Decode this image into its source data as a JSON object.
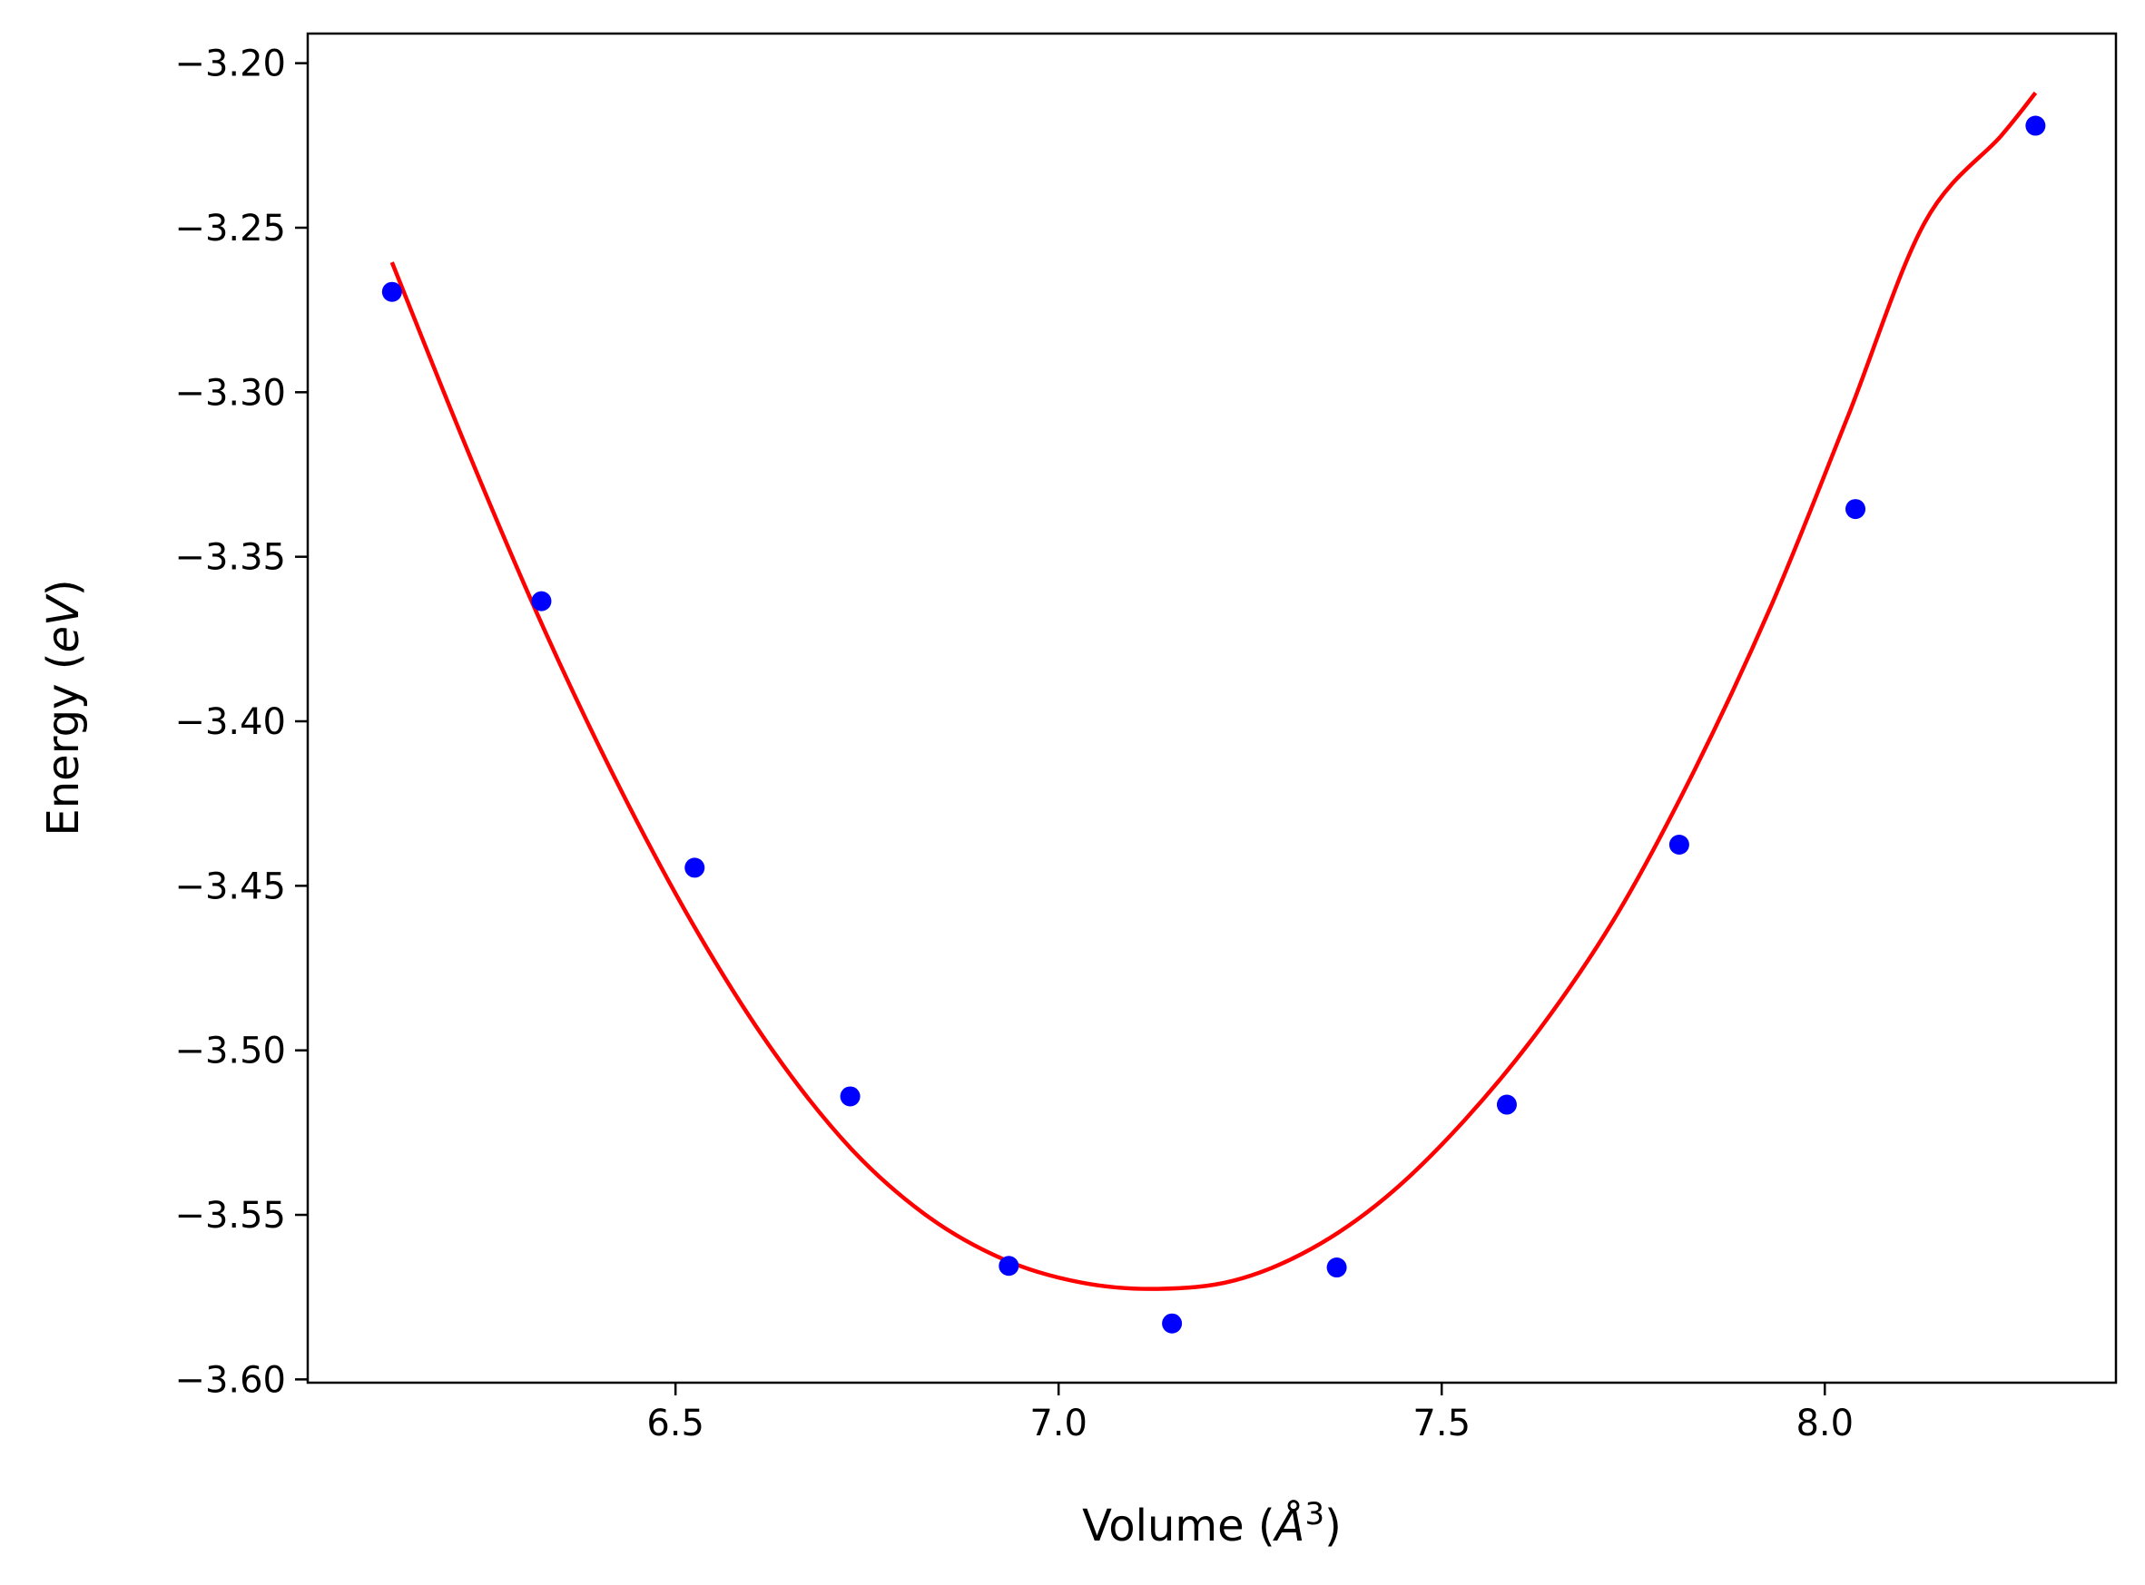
{
  "chart_data": {
    "type": "scatter",
    "xlabel": "Volume (Å³)",
    "xlabel_parts": {
      "prefix": "Volume (",
      "symbol": "Å",
      "sup": "3",
      "suffix": ")"
    },
    "ylabel": "Energy (eV)",
    "ylabel_parts": {
      "prefix": "Energy (",
      "unit": "eV",
      "suffix": ")"
    },
    "xlim": [
      6.02,
      8.38
    ],
    "ylim": [
      -3.601,
      -3.191
    ],
    "xticks": [
      {
        "value": 6.5,
        "label": "6.5"
      },
      {
        "value": 7.0,
        "label": "7.0"
      },
      {
        "value": 7.5,
        "label": "7.5"
      },
      {
        "value": 8.0,
        "label": "8.0"
      }
    ],
    "yticks": [
      {
        "value": -3.2,
        "label": "−3.20"
      },
      {
        "value": -3.25,
        "label": "−3.25"
      },
      {
        "value": -3.3,
        "label": "−3.30"
      },
      {
        "value": -3.35,
        "label": "−3.35"
      },
      {
        "value": -3.4,
        "label": "−3.40"
      },
      {
        "value": -3.45,
        "label": "−3.45"
      },
      {
        "value": -3.5,
        "label": "−3.50"
      },
      {
        "value": -3.55,
        "label": "−3.55"
      },
      {
        "value": -3.6,
        "label": "−3.60"
      }
    ],
    "series": [
      {
        "kind": "scatter",
        "color": "#0000ff",
        "x": [
          6.13,
          6.325,
          6.525,
          6.728,
          6.935,
          7.148,
          7.363,
          7.585,
          7.81,
          8.04,
          8.275
        ],
        "y": [
          -3.2695,
          -3.3635,
          -3.4445,
          -3.514,
          -3.5655,
          -3.583,
          -3.566,
          -3.5165,
          -3.4375,
          -3.3355,
          -3.219
        ]
      },
      {
        "kind": "line",
        "color": "#ff0000",
        "x": [
          6.13,
          6.23,
          6.33,
          6.43,
          6.53,
          6.63,
          6.73,
          6.83,
          6.93,
          7.03,
          7.13,
          7.23,
          7.33,
          7.43,
          7.53,
          7.63,
          7.73,
          7.83,
          7.93,
          8.03,
          8.13,
          8.23,
          8.275
        ],
        "y": [
          -3.2605,
          -3.3185,
          -3.3728,
          -3.4215,
          -3.4646,
          -3.5011,
          -3.5301,
          -3.5506,
          -3.5637,
          -3.5706,
          -3.5725,
          -3.5699,
          -3.5603,
          -3.5441,
          -3.5212,
          -3.4929,
          -3.4582,
          -3.4148,
          -3.3649,
          -3.3074,
          -3.2486,
          -3.2221,
          -3.209
        ]
      }
    ],
    "grid": false,
    "legend": "none"
  }
}
